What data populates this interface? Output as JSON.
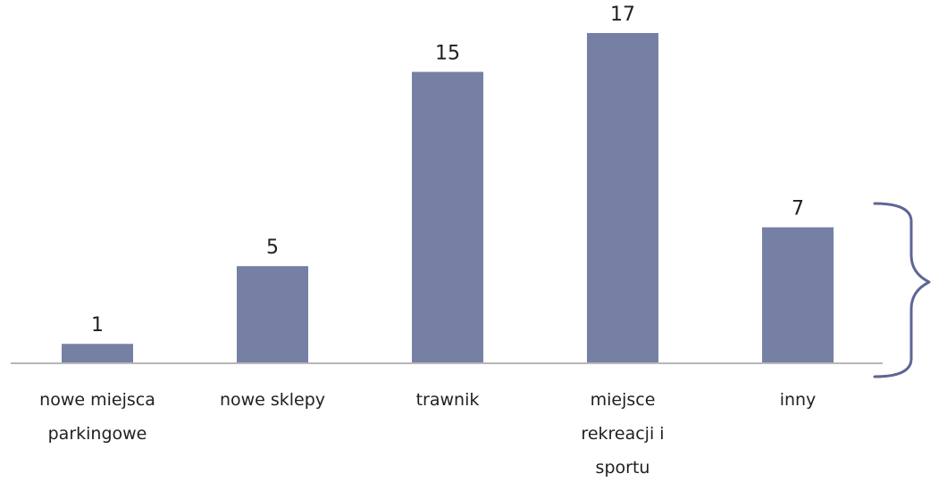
{
  "chart_data": {
    "type": "bar",
    "categories": [
      [
        "nowe miejsca",
        "parkingowe"
      ],
      [
        "nowe sklepy"
      ],
      [
        "trawnik"
      ],
      [
        "miejsce",
        "rekreacji i",
        "sportu"
      ],
      [
        "inny"
      ]
    ],
    "values": [
      1,
      5,
      15,
      17,
      7
    ],
    "ylim": [
      0,
      17
    ],
    "grid": false,
    "legend": "none",
    "colors": {
      "bar": "#7680a5",
      "axis": "#b7b7b7",
      "brace": "#5d6695",
      "text": "#1f1f1f"
    },
    "annotations": [
      {
        "kind": "right-curly-brace",
        "target_category": "inny"
      }
    ]
  }
}
